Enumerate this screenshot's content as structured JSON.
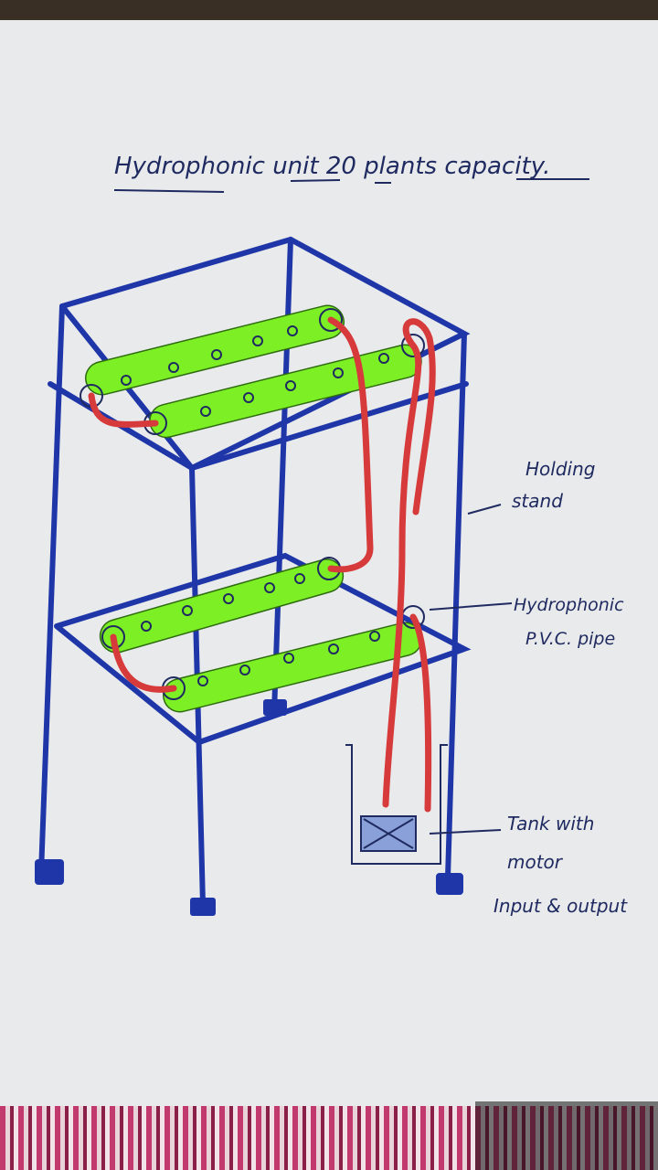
{
  "title": "Hydrophonic unit 20 plants capacity.",
  "labels": {
    "stand_line1": "Holding",
    "stand_line2": "stand",
    "pipe_line1": "Hydrophonic",
    "pipe_line2": "P.V.C. pipe",
    "tank_line1": "Tank with",
    "tank_line2": "motor",
    "tank_line3": "Input & output"
  },
  "colors": {
    "frame": "#1f36a8",
    "pipe": "#7cf024",
    "tube": "#d63a3a",
    "ink": "#1f2a60"
  }
}
